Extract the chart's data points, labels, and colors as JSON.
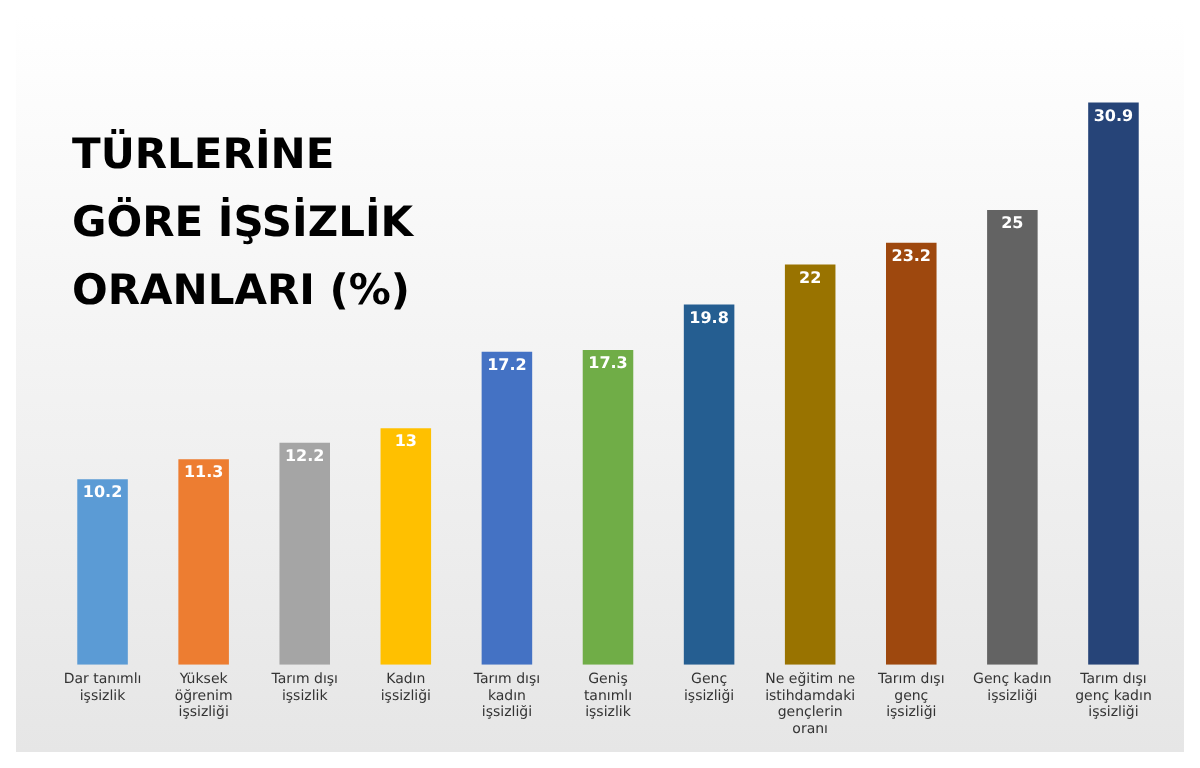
{
  "chart_data": {
    "type": "bar",
    "title": "TÜRLERİNE GÖRE İŞSİZLİK ORANLARI (%)",
    "categories": [
      "Dar tanımlı işsizlik",
      "Yüksek öğrenim işsizliği",
      "Tarım dışı işsizlik",
      "Kadın işsizliği",
      "Tarım dışı kadın işsizliği",
      "Geniş tanımlı işsizlik",
      "Genç işsizliği",
      "Ne eğitim ne istihdamdaki gençlerin oranı",
      "Tarım dışı genç işsizliği",
      "Genç kadın işsizliği",
      "Tarım dışı genç kadın işsizliği"
    ],
    "values": [
      10.2,
      11.3,
      12.2,
      13,
      17.2,
      17.3,
      19.8,
      22,
      23.2,
      25,
      30.9
    ],
    "colors": [
      "#5b9bd5",
      "#ed7d31",
      "#a5a5a5",
      "#ffc000",
      "#4472c4",
      "#70ad47",
      "#255e91",
      "#997300",
      "#9e480e",
      "#636363",
      "#264478"
    ],
    "data_labels": true,
    "grid": false,
    "legend": false
  }
}
